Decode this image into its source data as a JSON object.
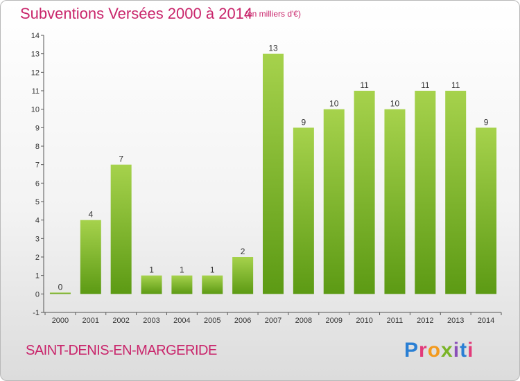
{
  "header": {
    "title": "Subventions Versées 2000 à 2014",
    "unit": "(en milliers d'€)"
  },
  "footer": {
    "commune": "SAINT-DENIS-EN-MARGERIDE",
    "logo_text": "Proxiti"
  },
  "colors": {
    "title": "#c9256b",
    "bar_light": "#a6d24c",
    "bar_dark": "#5c9a14"
  },
  "chart_data": {
    "type": "bar",
    "title": "Subventions Versées 2000 à 2014",
    "subtitle": "(en milliers d'€)",
    "categories": [
      "2000",
      "2001",
      "2002",
      "2003",
      "2004",
      "2005",
      "2006",
      "2007",
      "2008",
      "2009",
      "2010",
      "2011",
      "2012",
      "2013",
      "2014"
    ],
    "values": [
      0,
      4,
      7,
      1,
      1,
      1,
      2,
      13,
      9,
      10,
      11,
      10,
      11,
      11,
      9
    ],
    "yticks": [
      -1,
      0,
      1,
      2,
      3,
      4,
      5,
      6,
      7,
      8,
      9,
      10,
      11,
      12,
      13,
      14
    ],
    "ylim": [
      -1,
      14
    ],
    "grid": false,
    "legend": "none"
  }
}
